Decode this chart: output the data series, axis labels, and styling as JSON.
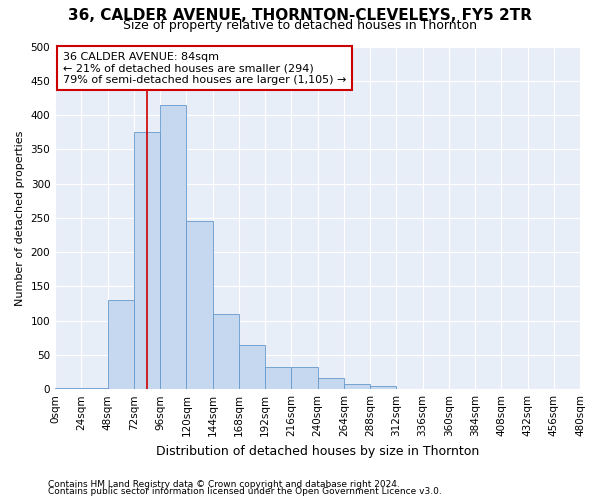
{
  "title1": "36, CALDER AVENUE, THORNTON-CLEVELEYS, FY5 2TR",
  "title2": "Size of property relative to detached houses in Thornton",
  "xlabel": "Distribution of detached houses by size in Thornton",
  "ylabel": "Number of detached properties",
  "footer1": "Contains HM Land Registry data © Crown copyright and database right 2024.",
  "footer2": "Contains public sector information licensed under the Open Government Licence v3.0.",
  "annotation_line1": "36 CALDER AVENUE: 84sqm",
  "annotation_line2": "← 21% of detached houses are smaller (294)",
  "annotation_line3": "79% of semi-detached houses are larger (1,105) →",
  "property_size": 84,
  "bin_edges": [
    0,
    24,
    48,
    72,
    96,
    120,
    144,
    168,
    192,
    216,
    240,
    264,
    288,
    312,
    336,
    360,
    384,
    408,
    432,
    456,
    480
  ],
  "bar_heights": [
    2,
    1,
    130,
    375,
    415,
    245,
    110,
    65,
    33,
    33,
    17,
    7,
    5,
    0,
    0,
    0,
    0,
    0,
    0,
    0
  ],
  "bar_color": "#c5d8f0",
  "bar_edge_color": "#6699cc",
  "vline_color": "#cc0000",
  "annotation_box_color": "#cc0000",
  "plot_bg_color": "#e8eef8",
  "ylim": [
    0,
    500
  ],
  "yticks": [
    0,
    50,
    100,
    150,
    200,
    250,
    300,
    350,
    400,
    450,
    500
  ],
  "title1_fontsize": 11,
  "title2_fontsize": 9,
  "xlabel_fontsize": 9,
  "ylabel_fontsize": 8,
  "tick_fontsize": 7.5,
  "footer_fontsize": 6.5,
  "annot_fontsize": 8
}
